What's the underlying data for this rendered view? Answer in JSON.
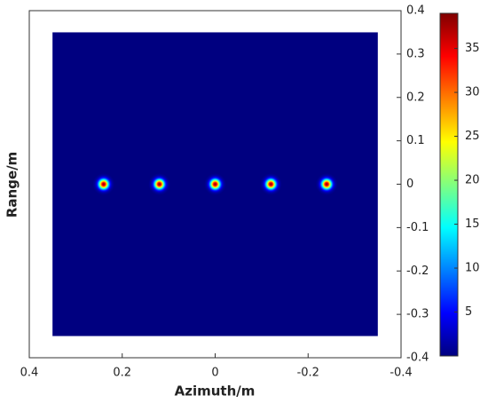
{
  "chart_data": {
    "type": "heatmap",
    "xlabel": "Azimuth/m",
    "ylabel": "Range/m",
    "xlim": [
      0.4,
      -0.4
    ],
    "ylim": [
      -0.4,
      0.4
    ],
    "xticks": [
      0.4,
      0.2,
      0,
      -0.2,
      -0.4
    ],
    "yticks": [
      0.4,
      0.3,
      0.2,
      0.1,
      0,
      -0.1,
      -0.2,
      -0.3,
      -0.4
    ],
    "image_extent": {
      "x": [
        0.35,
        -0.35
      ],
      "y": [
        -0.35,
        0.35
      ],
      "value": 0
    },
    "series": [
      {
        "name": "targets",
        "x": [
          0.24,
          0.12,
          0,
          -0.12,
          -0.24
        ],
        "y": [
          0,
          0,
          0,
          0,
          0
        ],
        "values": [
          38,
          38,
          38,
          38,
          38
        ]
      }
    ],
    "colormap": "jet",
    "clim": [
      0,
      39
    ],
    "cticks": [
      5,
      10,
      15,
      20,
      25,
      30,
      35
    ]
  }
}
